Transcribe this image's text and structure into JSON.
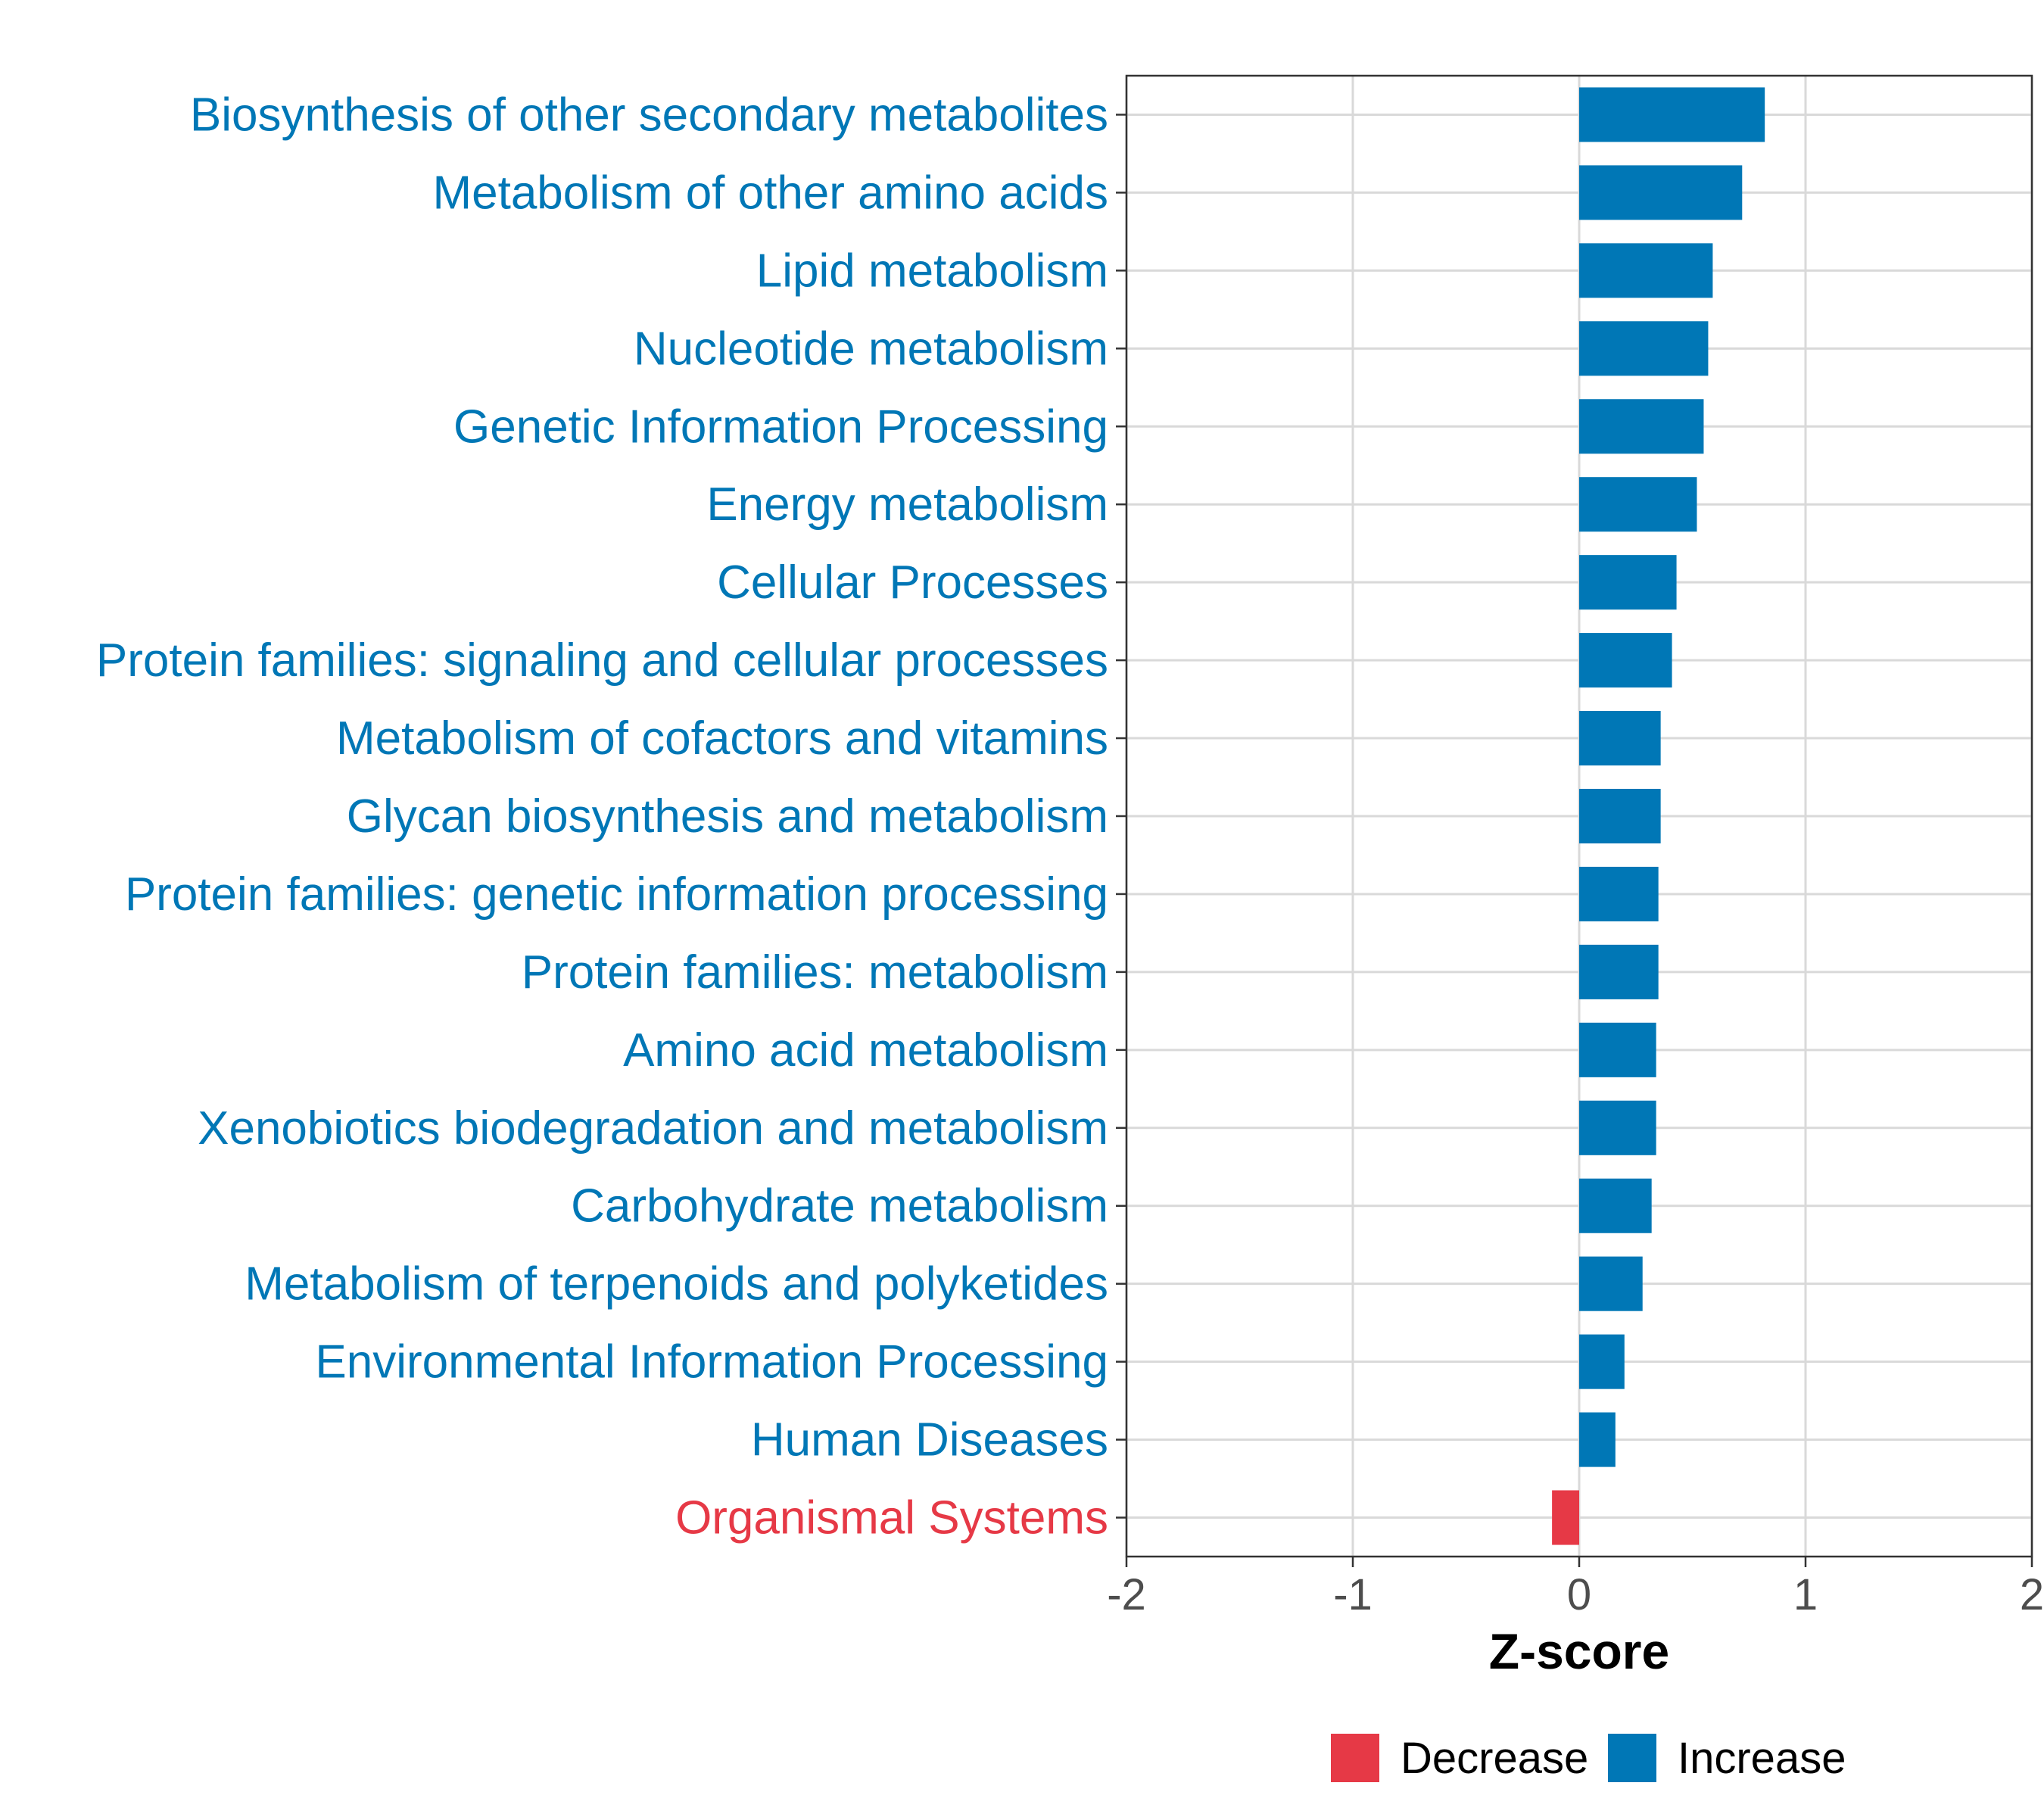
{
  "chart_data": {
    "type": "bar",
    "orientation": "horizontal",
    "title": "",
    "xlabel": "Z-score",
    "ylabel": "",
    "xlim": [
      -2,
      2
    ],
    "xticks": [
      -2,
      -1,
      0,
      1,
      2
    ],
    "xtick_labels": [
      "-2",
      "-1",
      "0",
      "1",
      "2"
    ],
    "grid": true,
    "categories": [
      "Biosynthesis of other secondary metabolites",
      "Metabolism of other amino acids",
      "Lipid metabolism",
      "Nucleotide metabolism",
      "Genetic Information Processing",
      "Energy metabolism",
      "Cellular Processes",
      "Protein families: signaling and cellular processes",
      "Metabolism of cofactors and vitamins",
      "Glycan biosynthesis and metabolism",
      "Protein families: genetic information processing",
      "Protein families: metabolism",
      "Amino acid metabolism",
      "Xenobiotics biodegradation and metabolism",
      "Carbohydrate metabolism",
      "Metabolism of terpenoids and polyketides",
      "Environmental Information Processing",
      "Human Diseases",
      "Organismal Systems"
    ],
    "values": [
      0.82,
      0.72,
      0.59,
      0.57,
      0.55,
      0.52,
      0.43,
      0.41,
      0.36,
      0.36,
      0.35,
      0.35,
      0.34,
      0.34,
      0.32,
      0.28,
      0.2,
      0.16,
      -0.12
    ],
    "groups": [
      "Increase",
      "Increase",
      "Increase",
      "Increase",
      "Increase",
      "Increase",
      "Increase",
      "Increase",
      "Increase",
      "Increase",
      "Increase",
      "Increase",
      "Increase",
      "Increase",
      "Increase",
      "Increase",
      "Increase",
      "Increase",
      "Decrease"
    ],
    "legend": {
      "position": "bottom",
      "entries": [
        {
          "label": "Decrease",
          "color": "#e63946"
        },
        {
          "label": "Increase",
          "color": "#0077b6"
        }
      ]
    }
  },
  "colors": {
    "Increase": "#0077b6",
    "Decrease": "#e63946",
    "grid": "#d9d9d9",
    "axis": "#333333"
  }
}
